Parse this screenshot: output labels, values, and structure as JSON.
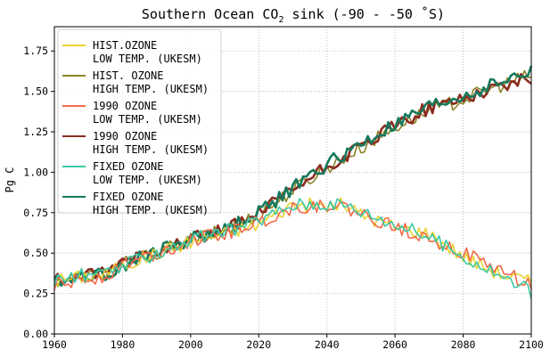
{
  "chart_data": {
    "type": "line",
    "title_main": "Southern Ocean CO",
    "title_sub": "2",
    "title_rest": " sink (-90 - -50 ˚S)",
    "xlabel": "",
    "ylabel": "Pg C",
    "xlim": [
      1960,
      2100
    ],
    "ylim": [
      0.0,
      1.9
    ],
    "xticks": [
      1960,
      1980,
      2000,
      2020,
      2040,
      2060,
      2080,
      2100
    ],
    "xtick_labels": [
      "1960",
      "1980",
      "2000",
      "2020",
      "2040",
      "2060",
      "2080",
      "2100"
    ],
    "yticks": [
      0.0,
      0.25,
      0.5,
      0.75,
      1.0,
      1.25,
      1.5,
      1.75
    ],
    "ytick_labels": [
      "0.00",
      "0.25",
      "0.50",
      "0.75",
      "1.00",
      "1.25",
      "1.50",
      "1.75"
    ],
    "grid": true,
    "legend_position": "upper-left",
    "series": [
      {
        "name_line1": "HIST.OZONE",
        "name_line2": " LOW TEMP. (UKESM)",
        "color": "#e8d230",
        "x": [
          1960,
          1970,
          1975,
          1980,
          1990,
          2000,
          2010,
          2020,
          2030,
          2040,
          2045,
          2050,
          2060,
          2070,
          2080,
          2090,
          2100
        ],
        "y": [
          0.33,
          0.36,
          0.37,
          0.42,
          0.5,
          0.57,
          0.62,
          0.68,
          0.8,
          0.79,
          0.8,
          0.74,
          0.66,
          0.62,
          0.48,
          0.38,
          0.32
        ]
      },
      {
        "name_line1": "HIST. OZONE",
        "name_line2": " HIGH TEMP. (UKESM)",
        "color": "#8c8228",
        "x": [
          1960,
          1970,
          1975,
          1980,
          1990,
          2000,
          2010,
          2020,
          2030,
          2040,
          2050,
          2060,
          2070,
          2080,
          2090,
          2100
        ],
        "y": [
          0.33,
          0.36,
          0.37,
          0.43,
          0.5,
          0.58,
          0.64,
          0.74,
          0.89,
          1.03,
          1.15,
          1.28,
          1.38,
          1.45,
          1.53,
          1.6
        ]
      },
      {
        "name_line1": "1990 OZONE",
        "name_line2": " LOW TEMP. (UKESM)",
        "color": "#f36a4a",
        "x": [
          1960,
          1970,
          1975,
          1980,
          1990,
          2000,
          2010,
          2020,
          2030,
          2040,
          2045,
          2050,
          2060,
          2070,
          2080,
          2090,
          2100
        ],
        "y": [
          0.3,
          0.34,
          0.36,
          0.43,
          0.5,
          0.58,
          0.62,
          0.69,
          0.78,
          0.8,
          0.78,
          0.74,
          0.66,
          0.6,
          0.5,
          0.4,
          0.3
        ]
      },
      {
        "name_line1": "1990 OZONE",
        "name_line2": " HIGH TEMP. (UKESM)",
        "color": "#8b2b1f",
        "x": [
          1960,
          1970,
          1975,
          1980,
          1990,
          2000,
          2010,
          2020,
          2030,
          2040,
          2050,
          2060,
          2070,
          2080,
          2090,
          2100
        ],
        "y": [
          0.33,
          0.36,
          0.37,
          0.45,
          0.52,
          0.59,
          0.64,
          0.74,
          0.89,
          1.03,
          1.15,
          1.29,
          1.4,
          1.46,
          1.53,
          1.58
        ]
      },
      {
        "name_line1": "FIXED OZONE",
        "name_line2": " LOW TEMP. (UKESM)",
        "color": "#3cc9a4",
        "x": [
          1960,
          1970,
          1975,
          1980,
          1990,
          2000,
          2010,
          2020,
          2030,
          2040,
          2045,
          2050,
          2060,
          2070,
          2080,
          2090,
          2100
        ],
        "y": [
          0.33,
          0.37,
          0.36,
          0.42,
          0.5,
          0.58,
          0.63,
          0.7,
          0.8,
          0.81,
          0.8,
          0.76,
          0.68,
          0.6,
          0.48,
          0.37,
          0.26
        ]
      },
      {
        "name_line1": "FIXED OZONE",
        "name_line2": " HIGH TEMP. (UKESM)",
        "color": "#167a5c",
        "x": [
          1960,
          1970,
          1975,
          1980,
          1990,
          2000,
          2010,
          2020,
          2030,
          2040,
          2050,
          2060,
          2070,
          2080,
          2090,
          2100
        ],
        "y": [
          0.33,
          0.37,
          0.36,
          0.43,
          0.51,
          0.59,
          0.64,
          0.75,
          0.9,
          1.05,
          1.17,
          1.29,
          1.4,
          1.47,
          1.55,
          1.62
        ]
      }
    ]
  }
}
